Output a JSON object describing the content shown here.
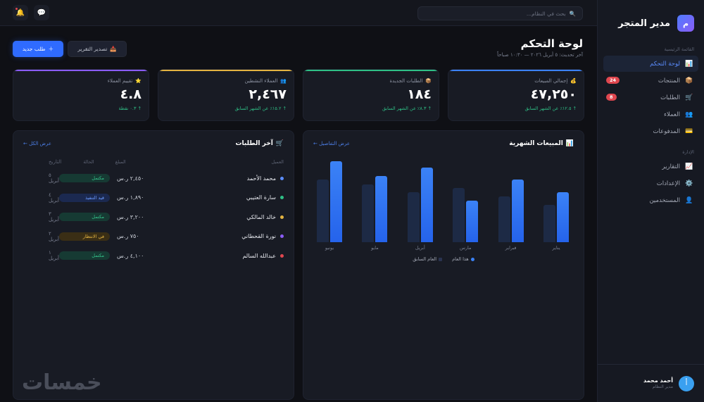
{
  "sidebar": {
    "brand_initial": "م",
    "brand_name": "مدير المتجر",
    "section_main": "القائمة الرئيسية",
    "section_admin": "الإدارة",
    "items": [
      {
        "icon": "📊",
        "label": "لوحة التحكم",
        "active": true
      },
      {
        "icon": "📦",
        "label": "المنتجات",
        "badge": "24"
      },
      {
        "icon": "🛒",
        "label": "الطلبات",
        "badge": "8"
      },
      {
        "icon": "👥",
        "label": "العملاء"
      },
      {
        "icon": "💳",
        "label": "المدفوعات"
      }
    ],
    "admin_items": [
      {
        "icon": "📈",
        "label": "التقارير"
      },
      {
        "icon": "⚙️",
        "label": "الإعدادات"
      },
      {
        "icon": "👤",
        "label": "المستخدمين"
      }
    ],
    "user": {
      "initial": "أ",
      "name": "أحمد محمد",
      "role": "مدير النظام"
    }
  },
  "topbar": {
    "search_placeholder": "بحث في النظام...",
    "search_icon": "🔍",
    "notification_icon": "🔔",
    "messages_icon": "💬"
  },
  "header": {
    "title": "لوحة التحكم",
    "subtitle": "آخر تحديث: ٥ أبريل ٢٠٢٦ — ١٠:٣٠ صباحاً",
    "export_label": "تصدير التقرير",
    "export_icon": "📥",
    "new_order_label": "طلب جديد",
    "new_order_icon": "＋"
  },
  "stats": [
    {
      "icon": "💰",
      "label": "إجمالي المبيعات",
      "value": "٤٧,٢٥٠",
      "change": "↑ ١٢.٥٪ عن الشهر السابق",
      "color": "#3b82f6"
    },
    {
      "icon": "📦",
      "label": "الطلبات الجديدة",
      "value": "١٨٤",
      "change": "↑ ٨.٣٪ عن الشهر السابق",
      "color": "#2fbf86"
    },
    {
      "icon": "👥",
      "label": "العملاء النشطين",
      "value": "٢,٤٦٧",
      "change": "↑ ١٥.٢٪ عن الشهر السابق",
      "color": "#e3b341"
    },
    {
      "icon": "⭐",
      "label": "تقييم العملاء",
      "value": "٤.٨",
      "change": "↑ ٠.٣ نقطة",
      "color": "#8a5cf6"
    }
  ],
  "sales_panel": {
    "title": "المبيعات الشهرية",
    "icon": "📊",
    "link": "عرض التفاصيل ←"
  },
  "chart_data": {
    "type": "bar",
    "title": "المبيعات الشهرية",
    "categories": [
      "يناير",
      "فبراير",
      "مارس",
      "أبريل",
      "مايو",
      "يونيو"
    ],
    "series": [
      {
        "name": "هذا العام",
        "color": "#3b82f6",
        "values": [
          71,
          89,
          59,
          106,
          94,
          115
        ]
      },
      {
        "name": "العام السابق",
        "color": "#1d2a45",
        "values": [
          53,
          65,
          77,
          71,
          82,
          89
        ]
      }
    ],
    "xlabel": "",
    "ylabel": "",
    "ylim": [
      0,
      120
    ],
    "grid": false,
    "legend_position": "bottom"
  },
  "orders_panel": {
    "title": "آخر الطلبات",
    "icon": "🛒",
    "link": "عرض الكل ←",
    "columns": [
      "العميل",
      "المبلغ",
      "الحالة",
      "التاريخ"
    ],
    "rows": [
      {
        "customer": "محمد الأحمد",
        "dot": "#5b8dff",
        "amount": "٢,٤٥٠ ر.س",
        "status": "مكتمل",
        "status_type": "done",
        "date": "٥ أبريل"
      },
      {
        "customer": "سارة العتيبي",
        "dot": "#2fbf86",
        "amount": "١,٨٩٠ ر.س",
        "status": "قيد التنفيذ",
        "status_type": "proc",
        "date": "٤ أبريل"
      },
      {
        "customer": "خالد المالكي",
        "dot": "#e3b341",
        "amount": "٣,٢٠٠ ر.س",
        "status": "مكتمل",
        "status_type": "done",
        "date": "٣ أبريل"
      },
      {
        "customer": "نورة القحطاني",
        "dot": "#8a5cf6",
        "amount": "٧٥٠ ر.س",
        "status": "في الانتظار",
        "status_type": "wait",
        "date": "٢ أبريل"
      },
      {
        "customer": "عبدالله السالم",
        "dot": "#e0474f",
        "amount": "٤,١٠٠ ر.س",
        "status": "مكتمل",
        "status_type": "done",
        "date": "١ أبريل"
      }
    ]
  },
  "watermark": "خمسات"
}
